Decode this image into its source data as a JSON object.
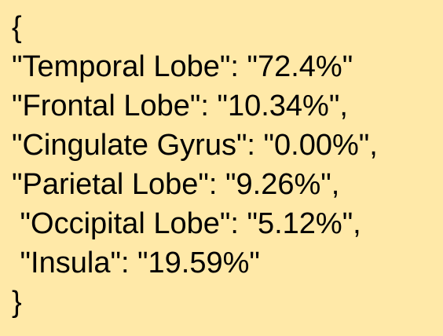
{
  "lines": [
    "{",
    "\"Temporal Lobe\": \"72.4%\"",
    "\"Frontal Lobe\": \"10.34%\",",
    "\"Cingulate Gyrus\": \"0.00%\",",
    "\"Parietal Lobe\": \"9.26%\",",
    " \"Occipital Lobe\": \"5.12%\",",
    " \"Insula\": \"19.59%\"",
    "}"
  ]
}
